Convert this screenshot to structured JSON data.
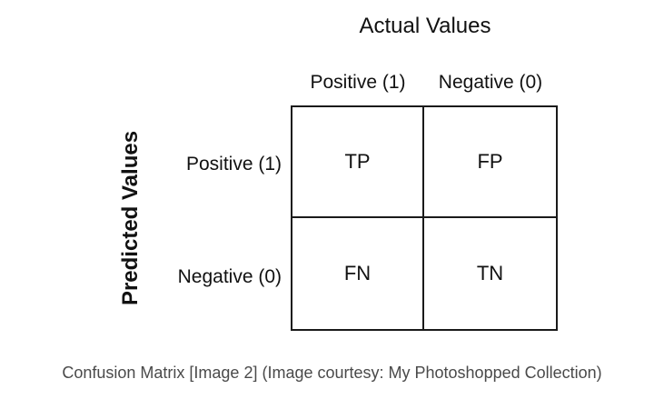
{
  "diagram": {
    "actual_title": "Actual Values",
    "predicted_title": "Predicted Values",
    "columns": [
      "Positive (1)",
      "Negative (0)"
    ],
    "rows": [
      "Positive (1)",
      "Negative (0)"
    ],
    "cells": [
      [
        "TP",
        "FP"
      ],
      [
        "FN",
        "TN"
      ]
    ]
  },
  "caption": "Confusion Matrix [Image 2] (Image courtesy: My Photoshopped Collection)"
}
